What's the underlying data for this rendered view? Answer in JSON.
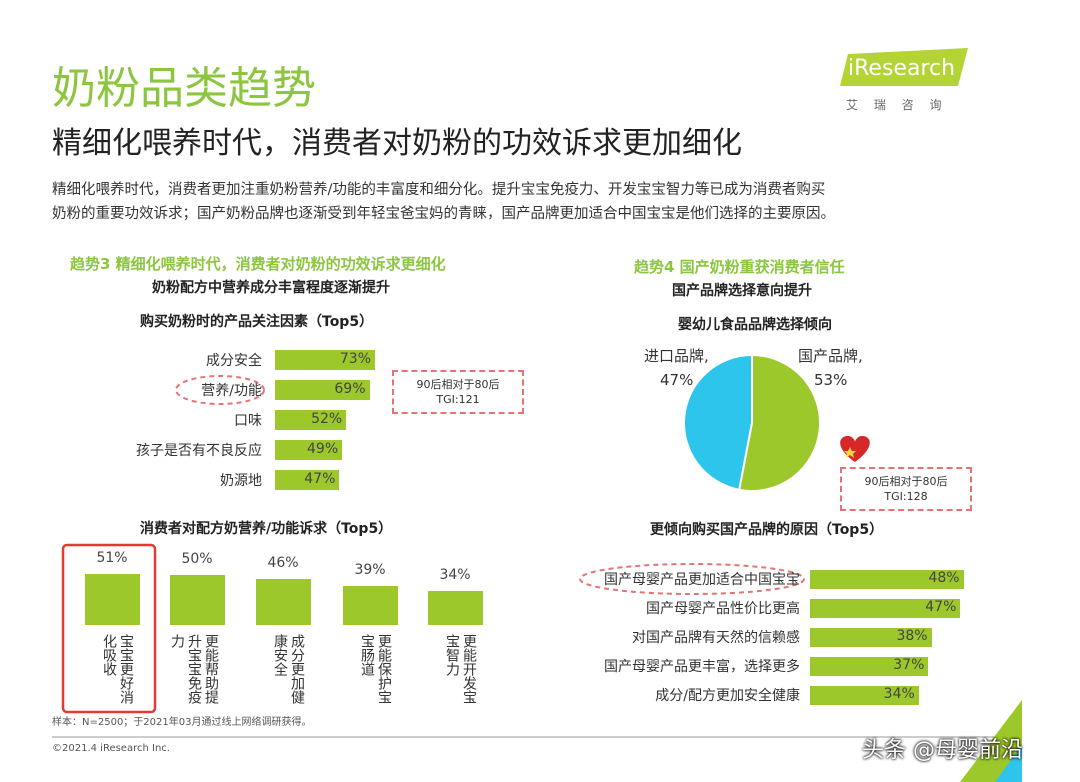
{
  "header": {
    "title": "奶粉品类趋势",
    "subtitle": "精细化喂养时代，消费者对奶粉的功效诉求更加细化",
    "body": [
      "精细化喂养时代，消费者更加注重奶粉营养/功能的丰富度和细分化。提升宝宝免疫力、开发宝宝智力等已成为消费者购买",
      "奶粉的重要功效诉求；国产奶粉品牌也逐渐受到年轻宝爸宝妈的青睐，国产品牌更加适合中国宝宝是他们选择的主要原因。"
    ],
    "logo": "iResearch",
    "logo_sub": "艾 瑞 咨 询"
  },
  "sections": [
    {
      "label": "趋势3 精细化喂养时代，消费者对奶粉的功效诉求更细化",
      "heading": "奶粉配方中营养成分丰富程度逐渐提升"
    },
    {
      "label": "趋势4 国产奶粉重获消费者信任",
      "heading": "国产品牌选择意向提升"
    }
  ],
  "chart_data": [
    {
      "type": "bar",
      "orientation": "horizontal",
      "title": "购买奶粉时的产品关注因素（Top5）",
      "categories": [
        "成分安全",
        "营养/功能",
        "口味",
        "孩子是否有不良反应",
        "奶源地"
      ],
      "values": [
        73,
        69,
        52,
        49,
        47
      ],
      "value_labels": [
        "73%",
        "69%",
        "52%",
        "49%",
        "47%"
      ],
      "color": "#9dc82b",
      "annotation": [
        "90后相对于80后",
        "TGI:121"
      ]
    },
    {
      "type": "bar",
      "orientation": "vertical",
      "title": "消费者对配方奶营养/功能诉求（Top5）",
      "categories": [
        "宝宝更好消化吸收",
        "更能帮助提升宝宝免疫力",
        "成分更加健康安全",
        "更能保护宝宝肠道",
        "更能开发宝宝智力"
      ],
      "values": [
        51,
        50,
        46,
        39,
        34
      ],
      "value_labels": [
        "51%",
        "50%",
        "46%",
        "39%",
        "34%"
      ],
      "color": "#9dc82b"
    },
    {
      "type": "pie",
      "title": "婴幼儿食品品牌选择倾向",
      "categories": [
        "进口品牌,",
        "国产品牌,"
      ],
      "values": [
        47,
        53
      ],
      "value_labels": [
        "47%",
        "53%"
      ],
      "colors": [
        "#2ec5ec",
        "#9dc82b"
      ],
      "annotation": [
        "90后相对于80后",
        "TGI:128"
      ]
    },
    {
      "type": "bar",
      "orientation": "horizontal",
      "title": "更倾向购买国产品牌的原因（Top5）",
      "categories": [
        "国产母婴产品更加适合中国宝宝",
        "国产母婴产品性价比更高",
        "对国产品牌有天然的信赖感",
        "国产母婴产品更丰富，选择更多",
        "成分/配方更加安全健康"
      ],
      "values": [
        48,
        47,
        38,
        37,
        34
      ],
      "value_labels": [
        "48%",
        "47%",
        "38%",
        "37%",
        "34%"
      ],
      "color": "#9dc82b"
    }
  ],
  "footer": {
    "note": "样本：N=2500；于2021年03月通过线上网络调研获得。",
    "copyright": "©2021.4 iResearch Inc.",
    "watermark": "头条 @母婴前沿"
  }
}
